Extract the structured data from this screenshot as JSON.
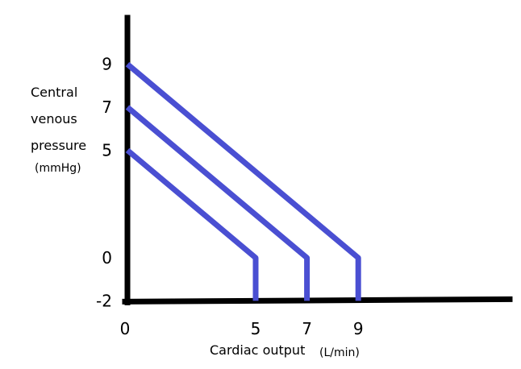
{
  "chart_data": {
    "type": "line",
    "title": "",
    "ylabel_lines": [
      "Central",
      "venous",
      "pressure",
      "(mmHg)"
    ],
    "xlabel_main": "Cardiac output",
    "xlabel_unit": "(L/min)",
    "x_ticks": [
      "0",
      "5",
      "7",
      "9"
    ],
    "y_ticks": [
      "9",
      "7",
      "5",
      "0",
      "-2"
    ],
    "xlim": [
      0,
      15
    ],
    "ylim": [
      -2,
      11
    ],
    "grid": false,
    "legend": "none",
    "line_color": "#4a4fd2",
    "axis_color": "#000000",
    "series": [
      {
        "x": [
          0,
          5,
          5
        ],
        "y": [
          5,
          0,
          -2
        ]
      },
      {
        "x": [
          0,
          7,
          7
        ],
        "y": [
          7,
          0,
          -2
        ]
      },
      {
        "x": [
          0,
          9,
          9
        ],
        "y": [
          9,
          0,
          -2
        ]
      }
    ]
  }
}
